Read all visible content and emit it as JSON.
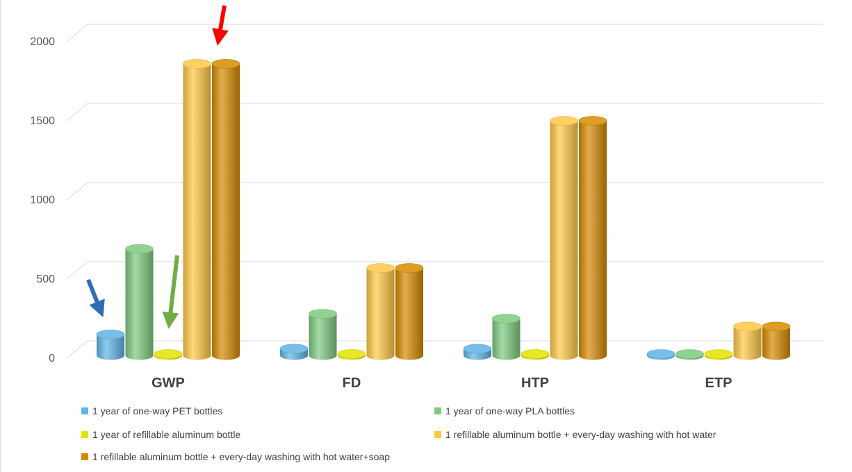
{
  "chart_data": {
    "type": "bar",
    "title": "",
    "xlabel": "",
    "ylabel": "",
    "categories": [
      "GWP",
      "FD",
      "HTP",
      "ETP"
    ],
    "ylim": [
      0,
      2000
    ],
    "yticks": [
      "0",
      "500",
      "1000",
      "1500",
      "2000"
    ],
    "grid": true,
    "legend_position": "bottom",
    "series": [
      {
        "name": "1 year of one-way PET bottles",
        "color": "#5fb4e5",
        "values": [
          150,
          60,
          60,
          5
        ]
      },
      {
        "name": "1 year of one-way PLA bottles",
        "color": "#7ec97e",
        "values": [
          690,
          280,
          250,
          10
        ]
      },
      {
        "name": "1 year of refillable aluminum bottle",
        "color": "#e3e300",
        "values": [
          20,
          10,
          10,
          8
        ]
      },
      {
        "name": "1 refillable aluminum bottle + every-day washing with hot water",
        "color": "#ffc845",
        "values": [
          1860,
          570,
          1500,
          200
        ]
      },
      {
        "name": "1 refillable aluminum bottle + every-day washing with hot water+soap",
        "color": "#d68a00",
        "values": [
          1860,
          570,
          1500,
          200
        ]
      }
    ],
    "annotations": [
      {
        "type": "arrow",
        "color": "#2e6db4",
        "points_to": "GWP - 1 year of one-way PET bottles"
      },
      {
        "type": "arrow",
        "color": "#70ad47",
        "points_to": "GWP - 1 year of refillable aluminum bottle"
      },
      {
        "type": "arrow",
        "color": "#ff0000",
        "points_to": "GWP - 1 refillable aluminum bottle + every-day washing with hot water+soap"
      }
    ]
  }
}
